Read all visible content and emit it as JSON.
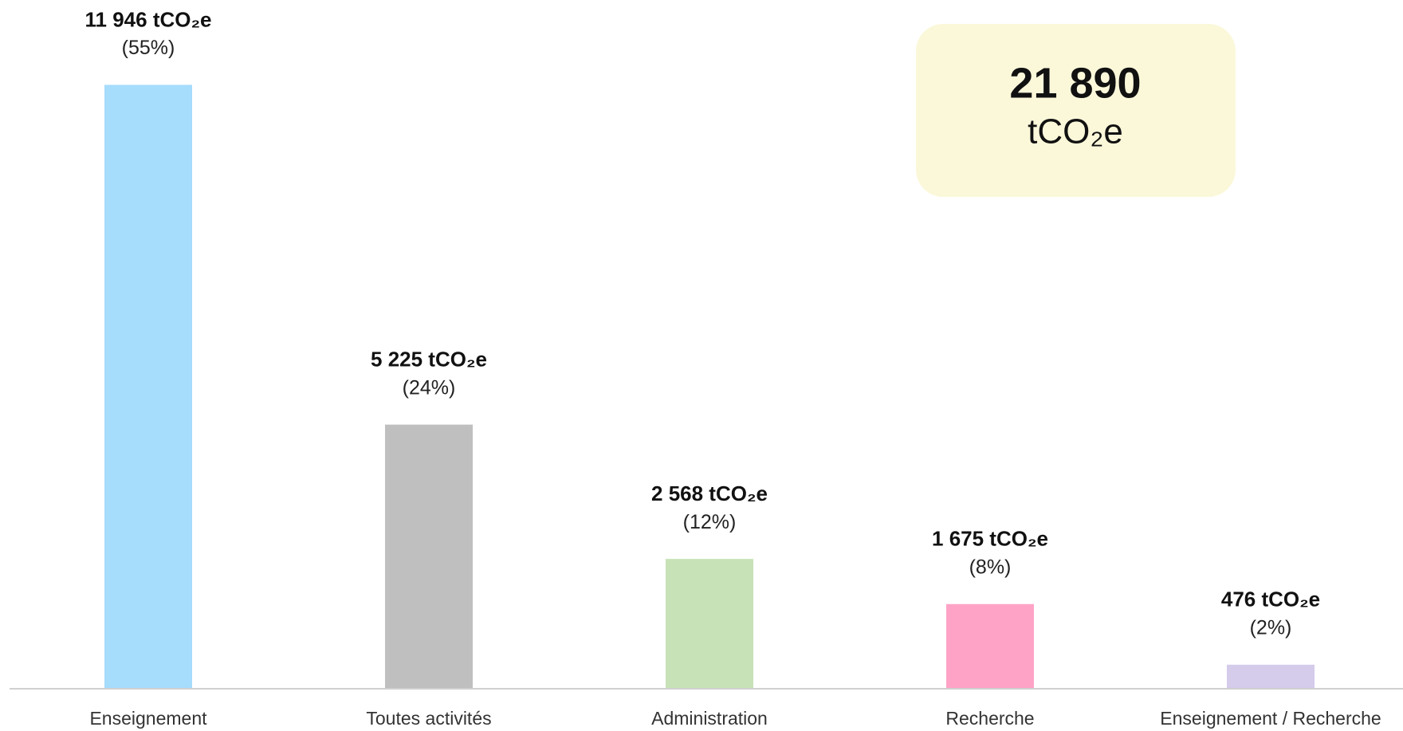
{
  "chart_data": {
    "type": "bar",
    "categories": [
      "Enseignement",
      "Toutes activités",
      "Administration",
      "Recherche",
      "Enseignement / Recherche"
    ],
    "values": [
      11946,
      5225,
      2568,
      1675,
      476
    ],
    "value_labels": [
      "11 946 tCO₂e",
      "5 225 tCO₂e",
      "2 568 tCO₂e",
      "1 675 tCO₂e",
      "476 tCO₂e"
    ],
    "share_labels": [
      "(55%)",
      "(24%)",
      "(12%)",
      "(8%)",
      "(2%)"
    ],
    "colors": [
      "#a6dcfc",
      "#bfbfbf",
      "#c7e2b6",
      "#ffa3c6",
      "#d5cbeb"
    ],
    "ylim": [
      0,
      12000
    ],
    "total": 21890,
    "total_label": "21 890",
    "total_unit": "tCO₂e"
  }
}
